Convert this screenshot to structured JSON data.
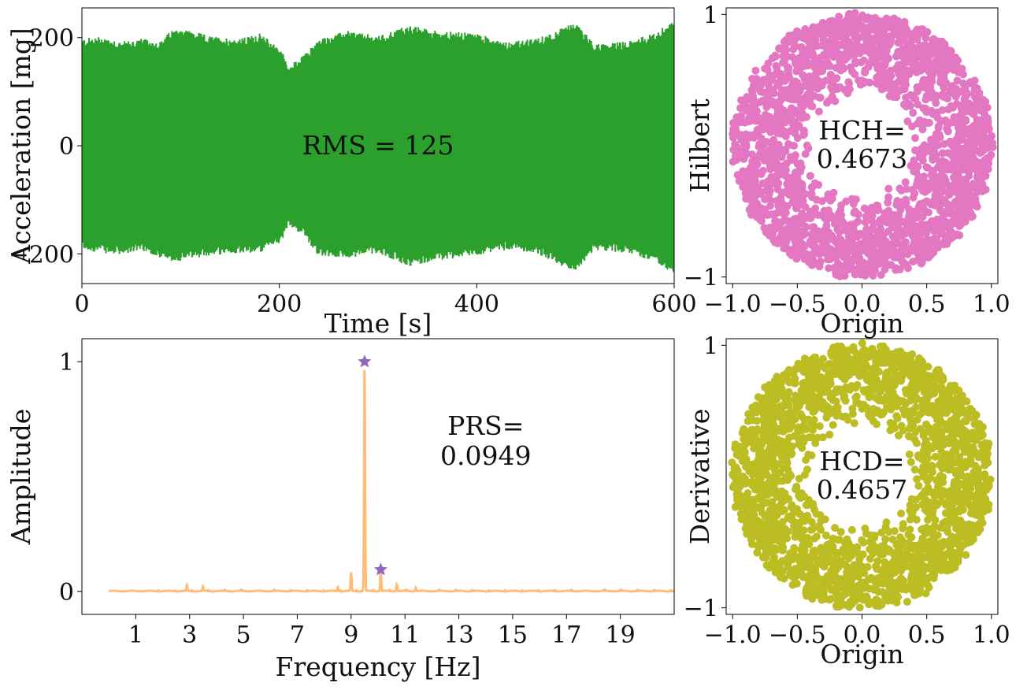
{
  "chart_data": [
    {
      "id": "signal",
      "type": "line",
      "xlabel": "Time [s]",
      "ylabel": "Acceleration [mg]",
      "xlim": [
        0,
        600
      ],
      "ylim": [
        -255,
        255
      ],
      "xticks": [
        0,
        200,
        400,
        600
      ],
      "yticks": [
        -200,
        0,
        200
      ],
      "annotation": "RMS = 125",
      "color": "#2ca02c",
      "envelope": {
        "t": [
          0,
          20,
          40,
          60,
          80,
          90,
          100,
          130,
          160,
          180,
          200,
          210,
          225,
          240,
          270,
          300,
          330,
          360,
          400,
          430,
          460,
          480,
          500,
          520,
          550,
          580,
          600
        ],
        "upper": [
          190,
          195,
          185,
          190,
          185,
          205,
          210,
          195,
          190,
          200,
          175,
          140,
          160,
          190,
          205,
          195,
          215,
          205,
          200,
          185,
          190,
          205,
          220,
          180,
          185,
          200,
          225
        ],
        "lower": [
          -185,
          -190,
          -195,
          -185,
          -200,
          -210,
          -205,
          -195,
          -190,
          -190,
          -175,
          -140,
          -160,
          -195,
          -200,
          -190,
          -215,
          -205,
          -195,
          -185,
          -190,
          -210,
          -225,
          -185,
          -190,
          -205,
          -230
        ]
      }
    },
    {
      "id": "hilbert",
      "type": "scatter",
      "xlabel": "Origin",
      "ylabel": "Hilbert",
      "xlim": [
        -1.05,
        1.05
      ],
      "ylim": [
        -1.05,
        1.05
      ],
      "xticks": [
        -1.0,
        -0.5,
        0.0,
        0.5,
        1.0
      ],
      "xtick_labels": [
        "−1.0",
        "−0.5",
        "0.0",
        "0.5",
        "1.0"
      ],
      "yticks": [
        -1,
        1
      ],
      "ytick_labels": [
        "−1",
        "1"
      ],
      "annotation": [
        "HCH=",
        "0.4673"
      ],
      "color": "#e377c2",
      "ring": {
        "inner_radius": 0.38,
        "outer_radius": 1.0
      }
    },
    {
      "id": "spectrum",
      "type": "line",
      "xlabel": "Frequency [Hz]",
      "ylabel": "Amplitude",
      "xlim": [
        -1,
        21
      ],
      "ylim": [
        -0.1,
        1.1
      ],
      "xticks": [
        1,
        3,
        5,
        7,
        9,
        11,
        13,
        15,
        17,
        19
      ],
      "yticks": [
        0,
        1
      ],
      "annotation": [
        "PRS=",
        "0.0949"
      ],
      "color": "#ffbb78",
      "marker_color": "#9467bd",
      "peaks": [
        {
          "f": 9.5,
          "a": 1.0,
          "star": true
        },
        {
          "f": 10.1,
          "a": 0.0949,
          "star": true
        },
        {
          "f": 9.0,
          "a": 0.08
        },
        {
          "f": 10.7,
          "a": 0.03
        },
        {
          "f": 2.9,
          "a": 0.025
        },
        {
          "f": 3.5,
          "a": 0.02
        },
        {
          "f": 8.5,
          "a": 0.018
        },
        {
          "f": 11.4,
          "a": 0.015
        }
      ]
    },
    {
      "id": "derivative",
      "type": "scatter",
      "xlabel": "Origin",
      "ylabel": "Derivative",
      "xlim": [
        -1.05,
        1.05
      ],
      "ylim": [
        -1.05,
        1.05
      ],
      "xticks": [
        -1.0,
        -0.5,
        0.0,
        0.5,
        1.0
      ],
      "xtick_labels": [
        "−1.0",
        "−0.5",
        "0.0",
        "0.5",
        "1.0"
      ],
      "yticks": [
        -1,
        1
      ],
      "ytick_labels": [
        "−1",
        "1"
      ],
      "annotation": [
        "HCD=",
        "0.4657"
      ],
      "color": "#bcbd22",
      "ring": {
        "inner_radius": 0.38,
        "outer_radius": 1.0
      }
    }
  ]
}
